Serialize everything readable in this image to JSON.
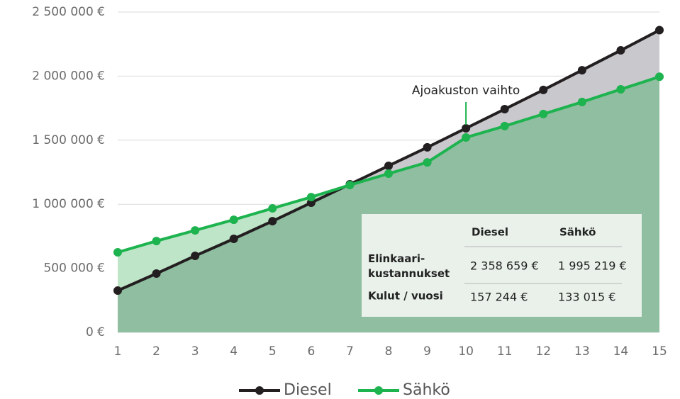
{
  "chart_data": {
    "type": "line",
    "x": [
      1,
      2,
      3,
      4,
      5,
      6,
      7,
      8,
      9,
      10,
      11,
      12,
      13,
      14,
      15
    ],
    "xlim": [
      1,
      15
    ],
    "xticks": [
      1,
      2,
      3,
      4,
      5,
      6,
      7,
      8,
      9,
      10,
      11,
      12,
      13,
      14,
      15
    ],
    "ylim": [
      0,
      2500000
    ],
    "yticks": [
      {
        "value": 0,
        "label": "0 €"
      },
      {
        "value": 500000,
        "label": "500 000 €"
      },
      {
        "value": 1000000,
        "label": "1 000 000 €"
      },
      {
        "value": 1500000,
        "label": "1 500 000 €"
      },
      {
        "value": 2000000,
        "label": "2 000 000 €"
      },
      {
        "value": 2500000,
        "label": "2 500 000 €"
      }
    ],
    "grid": true,
    "legend": "bottom",
    "series": [
      {
        "name": "Diesel",
        "color": "#231f20",
        "area_color": "#c9c8cc",
        "values": [
          326000,
          459000,
          597000,
          730000,
          868000,
          1012000,
          1156000,
          1300000,
          1444000,
          1593000,
          1742000,
          1892000,
          2046000,
          2201000,
          2358659
        ]
      },
      {
        "name": "Sähkö",
        "color": "#1db34f",
        "area_color": "#bfe5c8",
        "values": [
          625000,
          713000,
          796000,
          879000,
          968000,
          1056000,
          1150000,
          1239000,
          1327000,
          1521000,
          1610000,
          1704000,
          1798000,
          1897000,
          1995219
        ]
      }
    ],
    "shared_area_color": "#8fbea0",
    "annotations": [
      {
        "text": "Ajoakuston vaihto",
        "x": 10
      }
    ],
    "table": {
      "columns": [
        "Diesel",
        "Sähkö"
      ],
      "rows": [
        {
          "label": [
            "Elinkaari-",
            "kustannukset"
          ],
          "cells": [
            "2 358 659 €",
            "1 995 219 €"
          ]
        },
        {
          "label": [
            "Kulut / vuosi"
          ],
          "cells": [
            "157 244 €",
            "133 015 €"
          ]
        }
      ]
    }
  }
}
